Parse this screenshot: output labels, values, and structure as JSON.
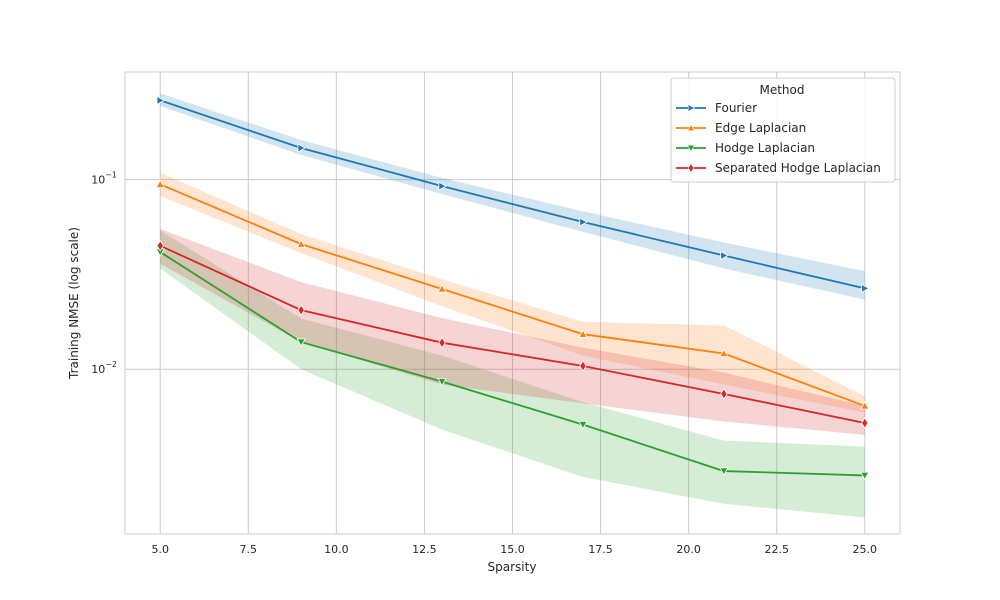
{
  "chart_data": {
    "type": "line",
    "xlabel": "Sparsity",
    "ylabel": "Training NMSE (log scale)",
    "x": [
      5,
      9,
      13,
      17,
      21,
      25
    ],
    "xlim": [
      4,
      26
    ],
    "x_ticks": [
      5.0,
      7.5,
      10.0,
      12.5,
      15.0,
      17.5,
      20.0,
      22.5,
      25.0
    ],
    "x_tick_labels": [
      "5.0",
      "7.5",
      "10.0",
      "12.5",
      "15.0",
      "17.5",
      "20.0",
      "22.5",
      "25.0"
    ],
    "y_scale": "log",
    "ylim": [
      0.00135,
      0.37
    ],
    "y_ticks": [
      0.01,
      0.1
    ],
    "y_tick_labels": [
      {
        "base": "10",
        "exp": "−2"
      },
      {
        "base": "10",
        "exp": "−1"
      }
    ],
    "grid": true,
    "legend": {
      "title": "Method",
      "placement": "top-right"
    },
    "series": [
      {
        "name": "Fourier",
        "color": "#1f77b4",
        "marker": "triangle-right",
        "values": [
          0.262,
          0.147,
          0.0925,
          0.0598,
          0.0398,
          0.0267
        ],
        "lower": [
          0.245,
          0.135,
          0.084,
          0.053,
          0.034,
          0.0233
        ],
        "upper": [
          0.285,
          0.162,
          0.102,
          0.068,
          0.0466,
          0.0329
        ]
      },
      {
        "name": "Edge Laplacian",
        "color": "#ff7f0e",
        "marker": "triangle-up",
        "values": [
          0.0945,
          0.0457,
          0.0265,
          0.0153,
          0.0121,
          0.0064
        ],
        "lower": [
          0.082,
          0.041,
          0.0215,
          0.0118,
          0.0083,
          0.0059
        ],
        "upper": [
          0.109,
          0.0515,
          0.0298,
          0.0178,
          0.017,
          0.0072
        ]
      },
      {
        "name": "Hodge Laplacian",
        "color": "#2ca02c",
        "marker": "triangle-down",
        "values": [
          0.0415,
          0.0139,
          0.0086,
          0.0051,
          0.0029,
          0.00275
        ],
        "lower": [
          0.034,
          0.01,
          0.0048,
          0.0027,
          0.00195,
          0.00165
        ],
        "upper": [
          0.054,
          0.0185,
          0.0118,
          0.0067,
          0.0042,
          0.0039
        ]
      },
      {
        "name": "Separated Hodge Laplacian",
        "color": "#d62728",
        "marker": "diamond",
        "values": [
          0.0448,
          0.0205,
          0.0138,
          0.0104,
          0.0074,
          0.0052
        ],
        "lower": [
          0.036,
          0.0139,
          0.0083,
          0.0066,
          0.0053,
          0.0045
        ],
        "upper": [
          0.055,
          0.0288,
          0.0186,
          0.013,
          0.0096,
          0.0064
        ]
      }
    ]
  }
}
